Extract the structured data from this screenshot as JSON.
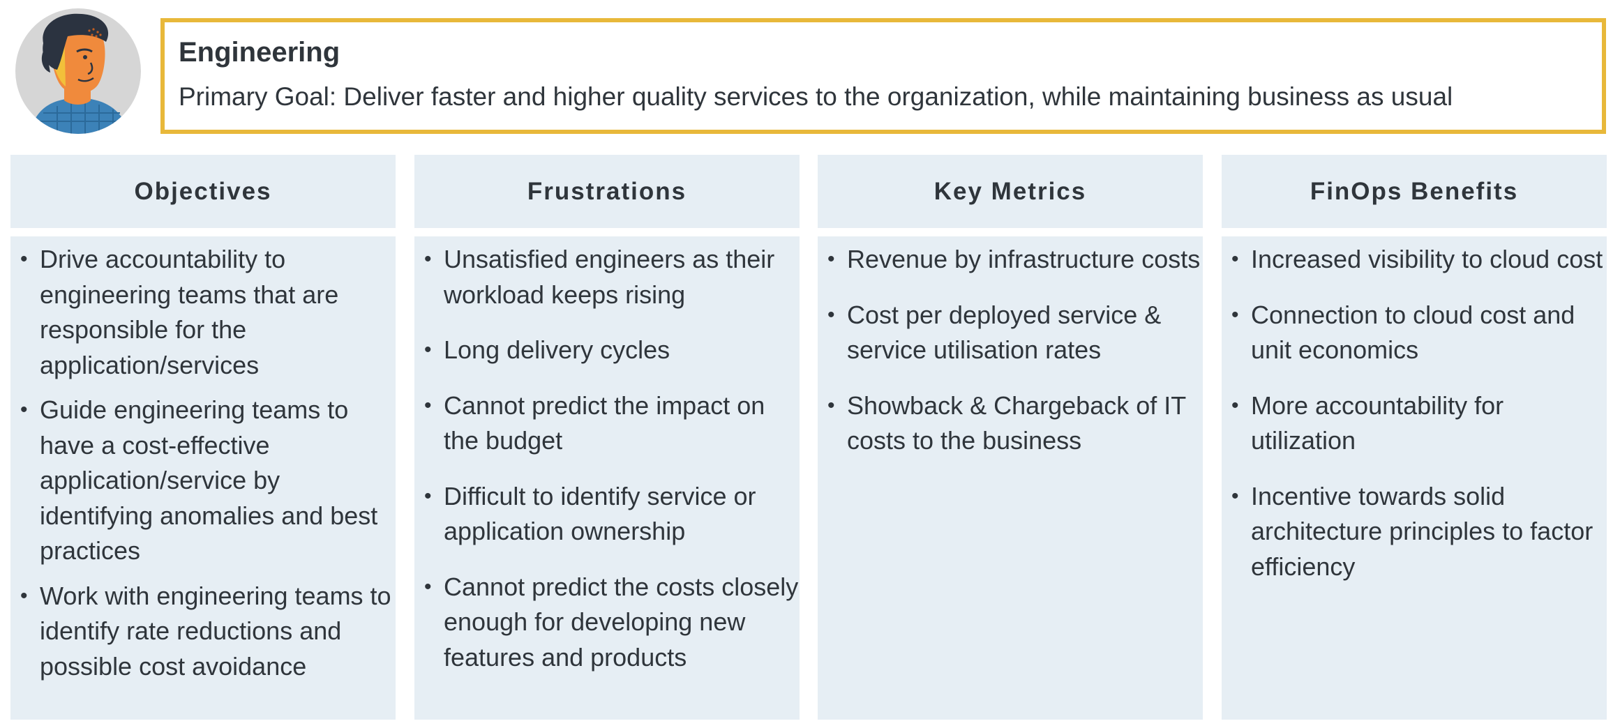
{
  "persona": {
    "title": "Engineering",
    "primary_goal": "Primary Goal: Deliver faster and higher quality services to the organization, while maintaining business as usual",
    "avatar_icon": "person-avatar-icon"
  },
  "colors": {
    "accent_border": "#e8b83a",
    "panel_background": "#e6eef4",
    "text": "#2f353b"
  },
  "columns": [
    {
      "heading": "Objectives",
      "items": [
        "Drive accountability to engineering teams that are responsible for the application/services",
        "Guide engineering teams to have a cost-effective application/service by identifying anomalies and best practices",
        "Work with engineering teams to identify rate reductions and possible cost avoidance"
      ]
    },
    {
      "heading": "Frustrations",
      "items": [
        "Unsatisfied engineers as their workload keeps rising",
        "Long delivery cycles",
        "Cannot predict the impact on the budget",
        "Difficult to identify service or application ownership",
        "Cannot predict the costs closely enough for developing new features and products"
      ]
    },
    {
      "heading": "Key Metrics",
      "items": [
        "Revenue by infrastructure costs",
        "Cost per deployed service & service utilisation rates",
        "Showback & Chargeback of IT costs to the business"
      ]
    },
    {
      "heading": "FinOps Benefits",
      "items": [
        "Increased visibility to cloud cost",
        "Connection to cloud cost and unit economics",
        "More accountability for utilization",
        "Incentive towards solid architecture principles to factor efficiency"
      ]
    }
  ]
}
